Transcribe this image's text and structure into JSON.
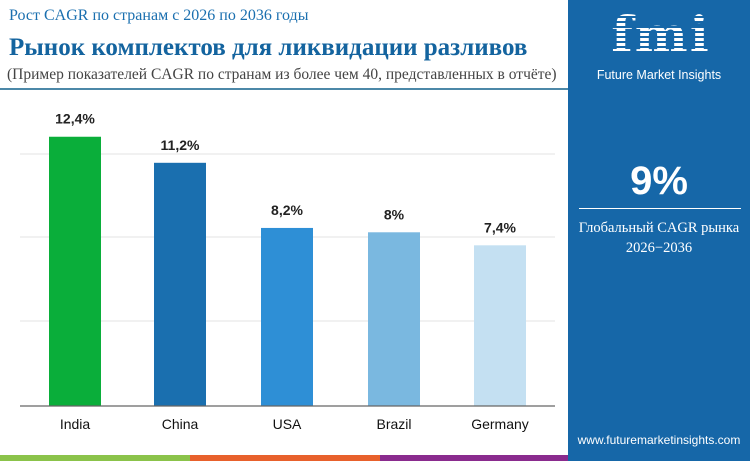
{
  "header": {
    "subtitle": "Рост CAGR по странам с 2026 по 2036 годы",
    "title": "Рынок комплектов для ликвидации разливов",
    "note": "(Пример показателей CAGR по странам из более чем 40, представленных в отчёте)"
  },
  "panel": {
    "brand_logo": "fmi",
    "brand_name": "Future Market Insights",
    "global_cagr": "9%",
    "global_label": "Глобальный CAGR рынка",
    "period": "2026−2036",
    "url": "www.futuremarketinsights.com",
    "background": "#1667a8"
  },
  "chart_data": {
    "type": "bar",
    "categories": [
      "India",
      "China",
      "USA",
      "Brazil",
      "Germany"
    ],
    "values": [
      12.4,
      11.2,
      8.2,
      8,
      7.4
    ],
    "data_labels": [
      "12,4%",
      "11,2%",
      "8,2%",
      "8%",
      "7,4%"
    ],
    "colors": [
      "#0aae3a",
      "#1a6faf",
      "#2e8fd6",
      "#7ab8e0",
      "#c4e0f2"
    ],
    "ylim": [
      0,
      14
    ],
    "grid": true,
    "title": "",
    "xlabel": "",
    "ylabel": ""
  },
  "footer_colors": [
    "#8bc34a",
    "#e8612c",
    "#8a2b8e"
  ]
}
